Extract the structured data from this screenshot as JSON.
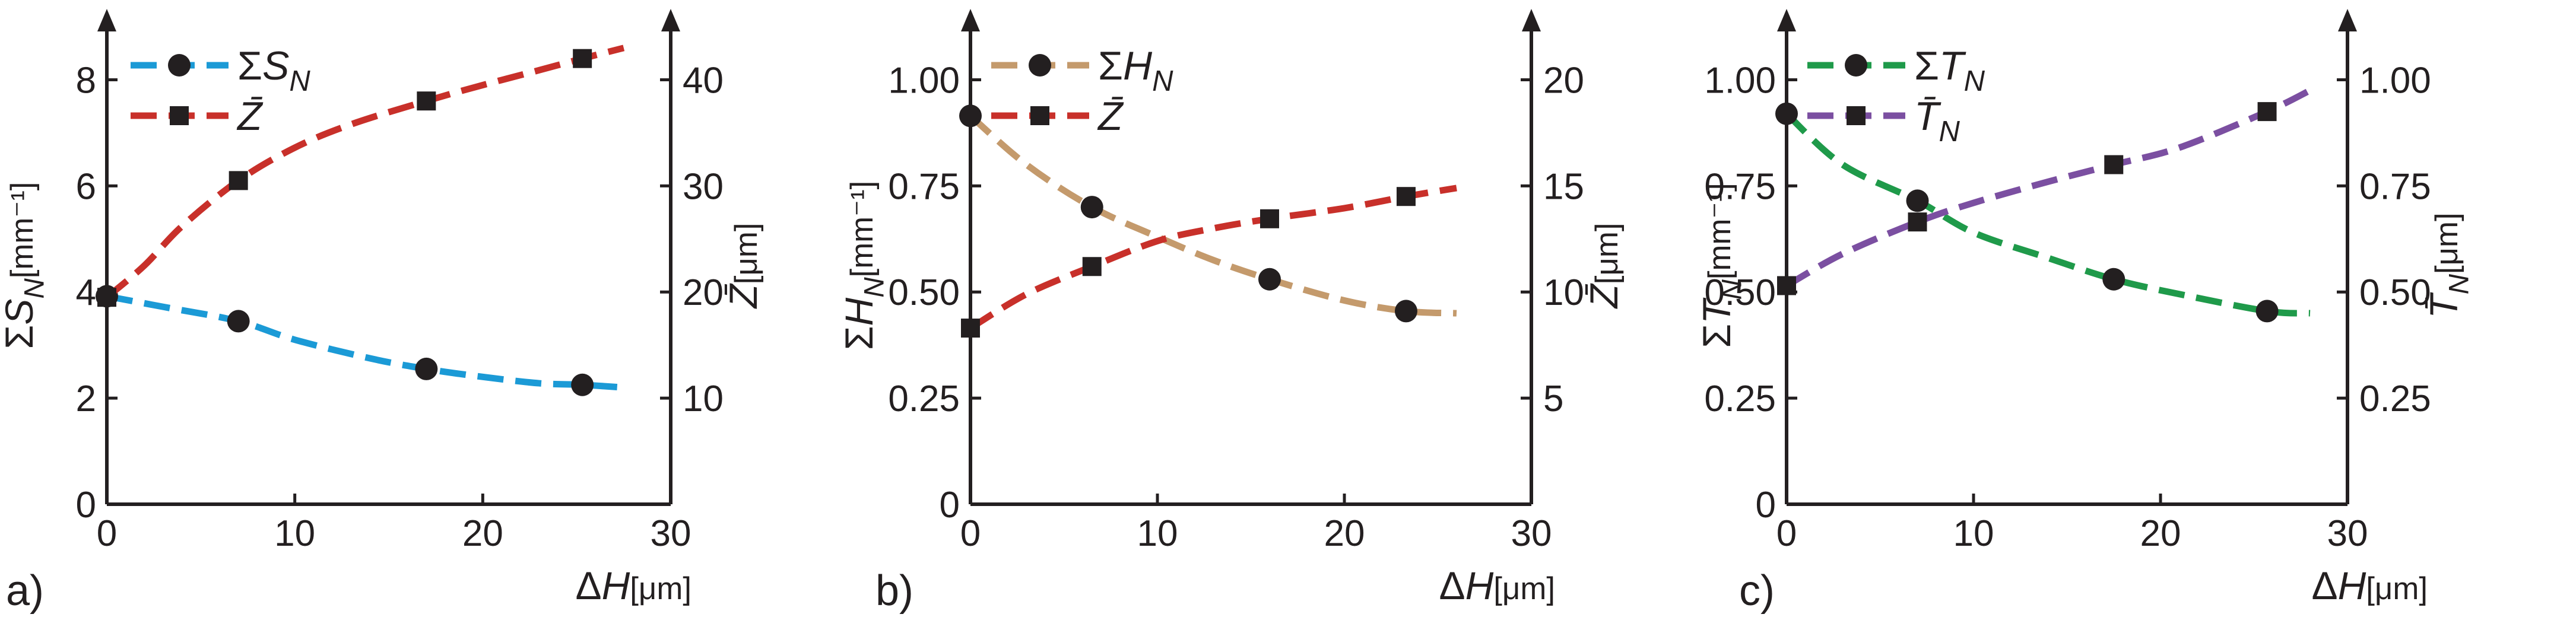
{
  "chart_data": [
    {
      "type": "line",
      "panel_label": "a)",
      "xlabel": "ΔH[μm]",
      "ylabel_left": "ΣS_N[mm⁻¹]",
      "ylabel_right": "Z̄[μm]",
      "xlim": [
        0,
        30
      ],
      "ylim_left": [
        0,
        9
      ],
      "ylim_right": [
        0,
        45
      ],
      "xticks": [
        "0",
        "10",
        "20",
        "30"
      ],
      "yticks_left": [
        "0",
        "2",
        "4",
        "6",
        "8"
      ],
      "yticks_right": [
        "10",
        "20",
        "30",
        "40"
      ],
      "yticks_right_values": [
        10,
        20,
        30,
        40
      ],
      "legend_position": "top-left",
      "series": [
        {
          "name": "ΣS_N",
          "axis": "left",
          "color": "#1b9ad6",
          "marker": "circle",
          "x": [
            0,
            7,
            17,
            25.3
          ],
          "y": [
            3.92,
            3.45,
            2.55,
            2.25
          ],
          "curve_x": [
            0,
            3,
            7,
            10,
            14,
            17,
            20,
            23,
            25.3,
            27.5
          ],
          "curve_y": [
            3.92,
            3.72,
            3.45,
            3.1,
            2.75,
            2.55,
            2.4,
            2.28,
            2.25,
            2.2
          ]
        },
        {
          "name": "Z̄",
          "axis": "right",
          "color": "#c8302a",
          "marker": "square",
          "x": [
            0,
            7,
            17,
            25.3
          ],
          "y": [
            19.5,
            30.5,
            38,
            42
          ],
          "curve_x": [
            0,
            2,
            4,
            7,
            10,
            13,
            17,
            20,
            23,
            25.3,
            27.5
          ],
          "curve_y": [
            19.5,
            22.5,
            26.2,
            30.5,
            33.6,
            35.8,
            38,
            39.5,
            40.9,
            42,
            43
          ]
        }
      ]
    },
    {
      "type": "line",
      "panel_label": "b)",
      "xlabel": "ΔH[μm]",
      "ylabel_left": "ΣH_N[mm⁻¹]",
      "ylabel_right": "Z̄[μm]",
      "xlim": [
        0,
        30
      ],
      "ylim_left": [
        0,
        1.125
      ],
      "ylim_right": [
        0,
        22.5
      ],
      "xticks": [
        "0",
        "10",
        "20",
        "30"
      ],
      "yticks_left": [
        "0",
        "0.25",
        "0.50",
        "0.75",
        "1.00"
      ],
      "yticks_right": [
        "5",
        "10",
        "15",
        "20"
      ],
      "yticks_right_values": [
        5,
        10,
        15,
        20
      ],
      "legend_position": "top-left",
      "series": [
        {
          "name": "ΣH_N",
          "axis": "left",
          "color": "#c49a6c",
          "marker": "circle",
          "x": [
            0,
            6.5,
            16,
            23.3
          ],
          "y": [
            0.915,
            0.7,
            0.53,
            0.455
          ],
          "curve_x": [
            0,
            3,
            6.5,
            10,
            13,
            16,
            20,
            23.3,
            26
          ],
          "curve_y": [
            0.915,
            0.8,
            0.7,
            0.63,
            0.575,
            0.53,
            0.48,
            0.455,
            0.45
          ]
        },
        {
          "name": "Z̄",
          "axis": "right",
          "color": "#c8302a",
          "marker": "square",
          "x": [
            0,
            6.5,
            16,
            23.3
          ],
          "y": [
            8.3,
            11.2,
            13.45,
            14.5
          ],
          "curve_x": [
            0,
            3,
            6.5,
            10,
            13,
            16,
            20,
            23.3,
            26
          ],
          "curve_y": [
            8.3,
            9.9,
            11.2,
            12.4,
            13.0,
            13.45,
            13.95,
            14.5,
            14.9
          ]
        }
      ]
    },
    {
      "type": "line",
      "panel_label": "c)",
      "xlabel": "ΔH[μm]",
      "ylabel_left": "ΣT_N[mm⁻¹]",
      "ylabel_right": "T̄_N[μm]",
      "xlim": [
        0,
        30
      ],
      "ylim_left": [
        0,
        1.125
      ],
      "ylim_right": [
        0,
        1.125
      ],
      "xticks": [
        "0",
        "10",
        "20",
        "30"
      ],
      "yticks_left": [
        "0",
        "0.25",
        "0.50",
        "0.75",
        "1.00"
      ],
      "yticks_right": [
        "0.25",
        "0.50",
        "0.75",
        "1.00"
      ],
      "yticks_right_values": [
        0.25,
        0.5,
        0.75,
        1.0
      ],
      "legend_position": "top-left",
      "series": [
        {
          "name": "ΣT_N",
          "axis": "left",
          "color": "#1f9a4a",
          "marker": "circle",
          "x": [
            0,
            7,
            17.5,
            25.7
          ],
          "y": [
            0.92,
            0.715,
            0.53,
            0.455
          ],
          "curve_x": [
            0,
            3,
            7,
            10,
            14,
            17.5,
            21,
            25.7,
            28
          ],
          "curve_y": [
            0.92,
            0.8,
            0.715,
            0.64,
            0.58,
            0.53,
            0.495,
            0.455,
            0.45
          ]
        },
        {
          "name": "T̄_N",
          "axis": "right",
          "color": "#7b4fa1",
          "marker": "square",
          "x": [
            0,
            7,
            17.5,
            25.7
          ],
          "y": [
            0.515,
            0.665,
            0.8,
            0.925
          ],
          "curve_x": [
            0,
            3,
            7,
            10,
            14,
            17.5,
            21,
            25.7,
            28
          ],
          "curve_y": [
            0.515,
            0.59,
            0.665,
            0.71,
            0.76,
            0.8,
            0.84,
            0.925,
            0.975
          ]
        }
      ]
    }
  ]
}
